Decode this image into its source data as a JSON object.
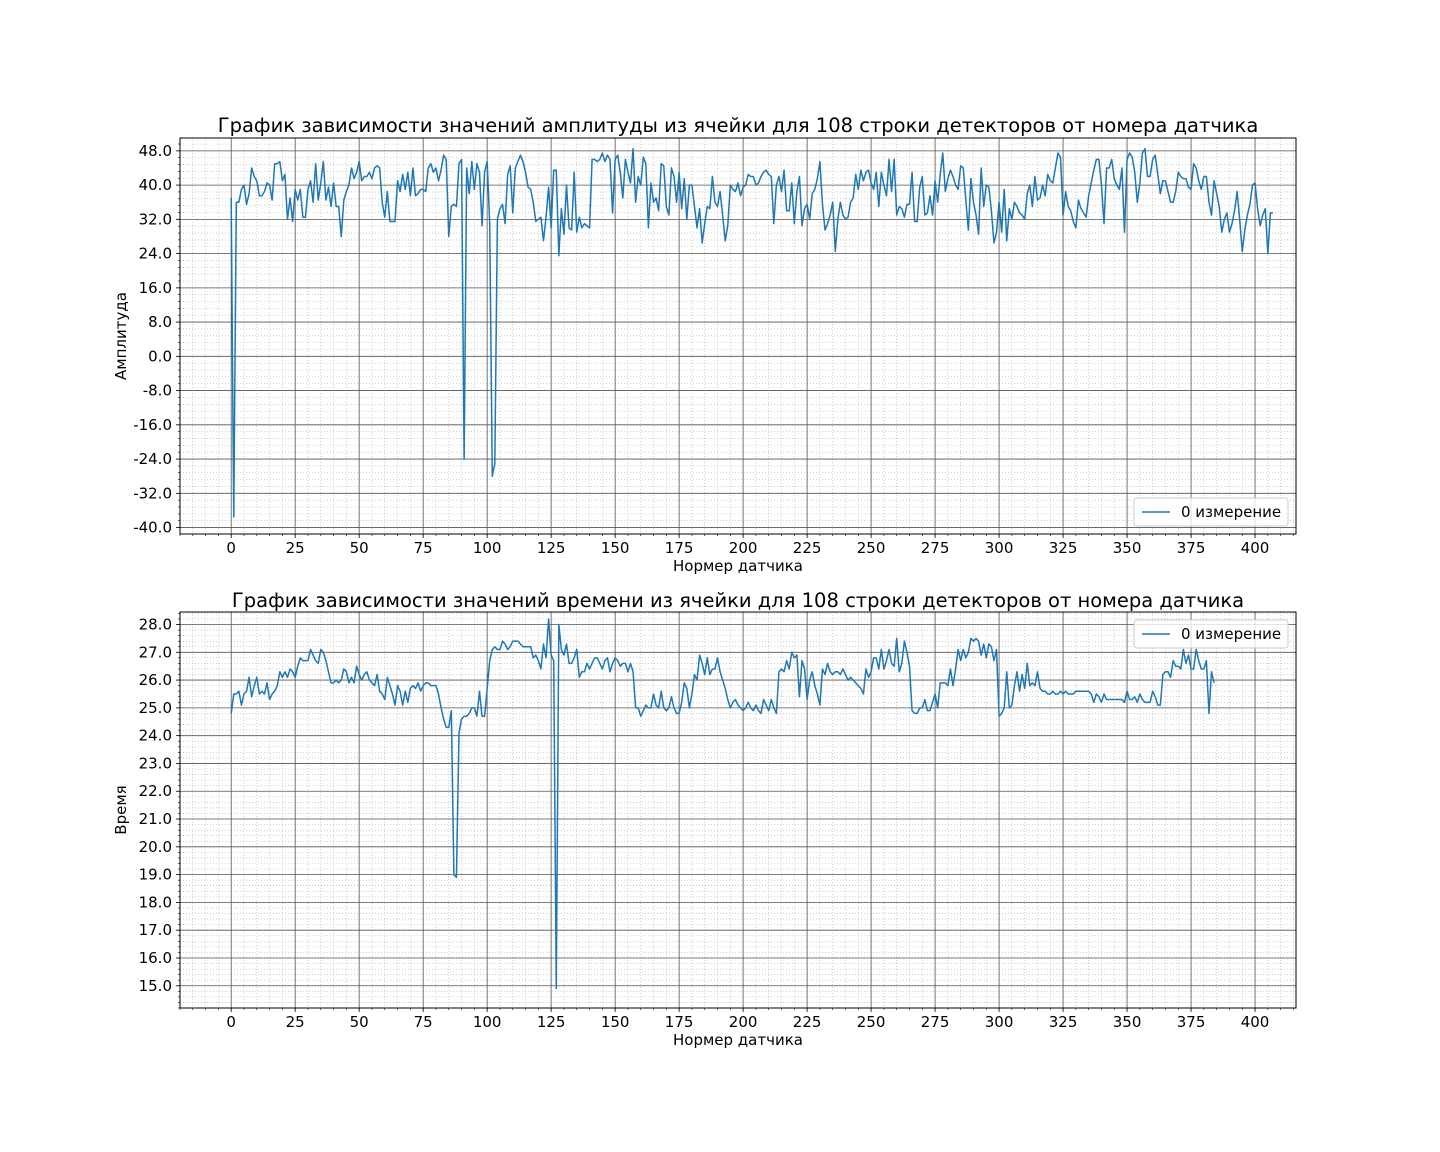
{
  "chart_data": [
    {
      "type": "line",
      "title": "График зависимости значений амплитуды из ячейки для 108 строки детекторов от номера датчика",
      "xlabel": "Нормер датчика",
      "ylabel": "Амплитуда",
      "xlim": [
        -20,
        416
      ],
      "ylim": [
        -41.5,
        51
      ],
      "xticks": [
        0,
        25,
        50,
        75,
        100,
        125,
        150,
        175,
        200,
        225,
        250,
        275,
        300,
        325,
        350,
        375,
        400
      ],
      "yticks": [
        -40.0,
        -32.0,
        -24.0,
        -16.0,
        -8.0,
        0.0,
        8.0,
        16.0,
        24.0,
        32.0,
        40.0,
        48.0
      ],
      "ytick_labels": [
        "-40.0",
        "-32.0",
        "-24.0",
        "-16.0",
        "-8.0",
        "0.0",
        "8.0",
        "16.0",
        "24.0",
        "32.0",
        "40.0",
        "48.0"
      ],
      "xtick_labels": [
        "0",
        "25",
        "50",
        "75",
        "100",
        "125",
        "150",
        "175",
        "200",
        "225",
        "250",
        "275",
        "300",
        "325",
        "350",
        "375",
        "400"
      ],
      "grid": true,
      "minor_grid": true,
      "legend_position": "lower right",
      "series": [
        {
          "name": "0 измерение",
          "color": "#1f77b4",
          "x_start": 0,
          "x_step": 1,
          "values": [
            37,
            -37.5,
            36,
            36,
            39,
            40,
            35.5,
            38,
            44,
            42,
            41,
            37.5,
            37.5,
            38.5,
            40.5,
            40,
            36.5,
            45,
            45,
            45.5,
            41,
            42.5,
            32,
            37,
            31.5,
            39,
            36.5,
            39,
            32.5,
            32.5,
            39,
            41,
            36,
            45,
            36.5,
            40.5,
            45.5,
            36.5,
            39.5,
            35,
            40.5,
            35,
            35,
            28,
            36.5,
            38.5,
            40,
            44,
            41.5,
            43,
            45.5,
            41,
            42,
            42,
            43,
            41.5,
            44,
            44.5,
            44,
            36,
            32.5,
            38.5,
            31.5,
            31.5,
            31.5,
            41,
            38.5,
            42.5,
            39,
            43,
            37.5,
            44,
            37.5,
            38,
            39,
            39,
            38.5,
            44,
            45,
            43,
            44,
            41,
            43.5,
            47,
            46,
            28,
            35,
            35.5,
            35,
            45,
            46,
            -24,
            44,
            38,
            45.5,
            39,
            45,
            43,
            30.5,
            43,
            45.5,
            31,
            -28,
            -25,
            32,
            34.5,
            35.5,
            31,
            42.5,
            44.5,
            33.5,
            44,
            45.5,
            47,
            45.5,
            43,
            39.5,
            39,
            36,
            31.5,
            32,
            32.5,
            27,
            32.5,
            39.5,
            30,
            43.5,
            43.5,
            23.5,
            34.5,
            28.5,
            40,
            30,
            29.5,
            43,
            29,
            32.5,
            30,
            31,
            30.5,
            30,
            46,
            46,
            45.5,
            46,
            47.5,
            45.5,
            47,
            46,
            33.5,
            46,
            47,
            43,
            37,
            46,
            43,
            40.5,
            48.5,
            36,
            42,
            40,
            46.5,
            45,
            30,
            40.5,
            36,
            37,
            34,
            45,
            44.5,
            35,
            33,
            44,
            42,
            36,
            43,
            34.5,
            41.5,
            32,
            40,
            40,
            35,
            30,
            34.5,
            26.5,
            31,
            35,
            34.5,
            42,
            36,
            35,
            38.5,
            33,
            27,
            30.5,
            40,
            39,
            38.5,
            40.5,
            37.5,
            39.5,
            40,
            42.5,
            42,
            42,
            40,
            40.5,
            42,
            43,
            43.5,
            42.5,
            42,
            31,
            40,
            42,
            38.5,
            43.5,
            34,
            34,
            40.5,
            31,
            38.5,
            42,
            30.5,
            34.5,
            35.5,
            32,
            38,
            39,
            41.5,
            45.5,
            35.5,
            29.5,
            31,
            33,
            36,
            24.5,
            32,
            36,
            33,
            32,
            32.5,
            36,
            37,
            42.5,
            39,
            43.5,
            41,
            43,
            43.5,
            40.5,
            39,
            43,
            35,
            43,
            40,
            37.5,
            46,
            38.5,
            46,
            33,
            35,
            34.5,
            32.5,
            35.5,
            35.5,
            43,
            31.5,
            31.5,
            39.5,
            42,
            33,
            33.5,
            37.5,
            33,
            41,
            36,
            42.5,
            47.5,
            38.5,
            41.5,
            43.5,
            42,
            40,
            39,
            44.5,
            44,
            36.5,
            29.5,
            41.5,
            36,
            33,
            28.5,
            44,
            35,
            40,
            39.5,
            34,
            26.5,
            29,
            36,
            29,
            39,
            27,
            34.5,
            32,
            36,
            35,
            33.5,
            33,
            32,
            38,
            40,
            35,
            42,
            36.5,
            37,
            40,
            37.5,
            42.5,
            41,
            40.5,
            44,
            47.5,
            46.5,
            33,
            38.5,
            35,
            34,
            31.5,
            30,
            36.5,
            34.5,
            33.5,
            32.5,
            37.5,
            40.5,
            43.5,
            46,
            46,
            40,
            31,
            44,
            44,
            46,
            41.5,
            40,
            39,
            44,
            29,
            46,
            47.5,
            46.5,
            43,
            36,
            40.5,
            47.5,
            48.5,
            42,
            42,
            46,
            47,
            42.5,
            38,
            41,
            41,
            38.5,
            36,
            36,
            38.5,
            43,
            42,
            41.5,
            41.5,
            39.5,
            39,
            45,
            44,
            41,
            39,
            42,
            42,
            36,
            33,
            41,
            38,
            35,
            29,
            32,
            33.5,
            29,
            31,
            34,
            38.5,
            32,
            24.5,
            29.5,
            33,
            35.5,
            40,
            40.5,
            34.5,
            30.5,
            33,
            34.5,
            24,
            33.5,
            33.5
          ]
        }
      ]
    },
    {
      "type": "line",
      "title": "График зависимости значений времени из ячейки для 108 строки детекторов от номера датчика",
      "xlabel": "Нормер датчика",
      "ylabel": "Время",
      "xlim": [
        -20,
        416
      ],
      "ylim": [
        14.2,
        28.45
      ],
      "xticks": [
        0,
        25,
        50,
        75,
        100,
        125,
        150,
        175,
        200,
        225,
        250,
        275,
        300,
        325,
        350,
        375,
        400
      ],
      "yticks": [
        15.0,
        16.0,
        17.0,
        18.0,
        19.0,
        20.0,
        21.0,
        22.0,
        23.0,
        24.0,
        25.0,
        26.0,
        27.0,
        28.0
      ],
      "ytick_labels": [
        "15.0",
        "16.0",
        "17.0",
        "18.0",
        "19.0",
        "20.0",
        "21.0",
        "22.0",
        "23.0",
        "24.0",
        "25.0",
        "26.0",
        "27.0",
        "28.0"
      ],
      "xtick_labels": [
        "0",
        "25",
        "50",
        "75",
        "100",
        "125",
        "150",
        "175",
        "200",
        "225",
        "250",
        "275",
        "300",
        "325",
        "350",
        "375",
        "400"
      ],
      "grid": true,
      "minor_grid": true,
      "legend_position": "upper right",
      "series": [
        {
          "name": "0 измерение",
          "color": "#1f77b4",
          "x_start": 0,
          "x_step": 1,
          "values": [
            24.8,
            25.5,
            25.5,
            25.6,
            25.1,
            25.5,
            25.6,
            26.1,
            25.4,
            25.8,
            26.1,
            25.5,
            25.6,
            25.5,
            25.9,
            25.3,
            25.5,
            25.6,
            25.8,
            26.3,
            26.1,
            26.3,
            26.1,
            26.4,
            26.3,
            26.1,
            26.5,
            26.8,
            26.7,
            26.7,
            26.7,
            27.1,
            26.9,
            26.7,
            26.6,
            27.1,
            27.0,
            26.7,
            26.3,
            25.9,
            25.9,
            26.0,
            25.9,
            26.0,
            26.4,
            26.3,
            25.9,
            26.1,
            25.9,
            26.5,
            26.2,
            26.0,
            26.2,
            26.3,
            26.0,
            25.9,
            25.8,
            26.2,
            25.6,
            25.5,
            25.3,
            26.1,
            25.8,
            25.5,
            25.1,
            25.8,
            25.6,
            25.1,
            25.6,
            25.2,
            25.7,
            25.8,
            25.7,
            25.9,
            25.6,
            25.8,
            25.9,
            25.9,
            25.8,
            25.8,
            25.8,
            25.5,
            25.0,
            24.6,
            24.3,
            24.3,
            24.9,
            19.0,
            18.9,
            24.1,
            24.6,
            24.7,
            24.7,
            24.8,
            25.0,
            25.0,
            24.7,
            25.6,
            24.7,
            24.7,
            25.7,
            26.7,
            27.1,
            27.2,
            27.1,
            27.1,
            27.4,
            27.3,
            27.1,
            27.2,
            27.4,
            27.4,
            27.4,
            27.3,
            27.2,
            27.2,
            27.2,
            27.2,
            26.8,
            26.9,
            26.7,
            26.4,
            27.3,
            26.8,
            28.2,
            26.9,
            26.7,
            14.9,
            28.0,
            27.1,
            26.9,
            27.3,
            26.6,
            26.6,
            26.8,
            27.1,
            26.1,
            26.3,
            26.3,
            26.6,
            26.4,
            26.6,
            26.8,
            26.8,
            26.6,
            26.4,
            26.7,
            26.8,
            26.3,
            26.6,
            26.8,
            26.7,
            26.5,
            26.6,
            26.6,
            26.3,
            26.6,
            26.3,
            25.0,
            25.0,
            24.7,
            24.9,
            25.1,
            25.0,
            25.0,
            25.5,
            25.1,
            25.0,
            25.6,
            25.0,
            24.9,
            25.0,
            25.4,
            25.0,
            24.8,
            24.8,
            25.2,
            25.9,
            25.7,
            25.0,
            25.5,
            26.2,
            26.0,
            26.9,
            26.6,
            26.2,
            26.8,
            26.2,
            26.4,
            26.4,
            26.8,
            26.3,
            26.0,
            25.7,
            25.3,
            25.0,
            25.2,
            25.3,
            25.1,
            25.0,
            24.9,
            25.0,
            25.2,
            25.0,
            24.9,
            25.1,
            24.9,
            24.8,
            25.3,
            25.1,
            24.9,
            25.3,
            25.0,
            24.8,
            26.3,
            26.4,
            26.3,
            26.7,
            26.4,
            27.0,
            26.8,
            26.9,
            25.4,
            26.7,
            26.4,
            25.3,
            26.0,
            26.3,
            25.8,
            25.5,
            25.1,
            26.4,
            26.2,
            26.6,
            26.3,
            26.2,
            26.3,
            26.3,
            26.2,
            26.4,
            26.2,
            26.0,
            26.1,
            26.0,
            25.9,
            25.8,
            25.7,
            25.5,
            26.4,
            26.1,
            26.3,
            26.8,
            26.8,
            26.4,
            27.1,
            26.4,
            26.7,
            27.1,
            26.6,
            26.5,
            27.5,
            26.3,
            26.6,
            27.4,
            27.0,
            26.5,
            24.9,
            24.8,
            24.8,
            25.0,
            25.0,
            25.3,
            24.9,
            24.9,
            25.2,
            25.5,
            25.0,
            25.9,
            25.9,
            25.9,
            25.8,
            26.4,
            25.8,
            26.4,
            27.1,
            26.7,
            27.1,
            26.8,
            27.0,
            27.5,
            27.4,
            27.5,
            27.4,
            26.9,
            27.3,
            26.8,
            27.3,
            27.2,
            26.7,
            27.1,
            24.7,
            24.8,
            25.0,
            26.3,
            25.0,
            25.1,
            25.8,
            26.3,
            25.6,
            26.2,
            25.7,
            26.6,
            25.8,
            25.9,
            25.8,
            26.3,
            25.7,
            25.6,
            25.6,
            25.5,
            25.5,
            25.6,
            25.5,
            25.5,
            25.6,
            25.5,
            25.6,
            25.5,
            25.5,
            25.5,
            25.6,
            25.6,
            25.6,
            25.6,
            25.6,
            25.6,
            25.5,
            25.2,
            25.5,
            25.4,
            25.2,
            25.5,
            25.3,
            25.3,
            25.3,
            25.3,
            25.3,
            25.3,
            25.3,
            25.2,
            25.6,
            25.3,
            25.3,
            25.4,
            25.2,
            25.5,
            25.3,
            25.2,
            25.2,
            25.2,
            25.6,
            25.4,
            25.1,
            25.1,
            26.2,
            26.3,
            26.3,
            26.1,
            26.7,
            26.5,
            26.5,
            26.4,
            27.1,
            26.6,
            26.9,
            26.4,
            26.4,
            27.1,
            26.7,
            26.4,
            26.4,
            26.7,
            24.8,
            26.3,
            25.9
          ]
        }
      ]
    }
  ]
}
